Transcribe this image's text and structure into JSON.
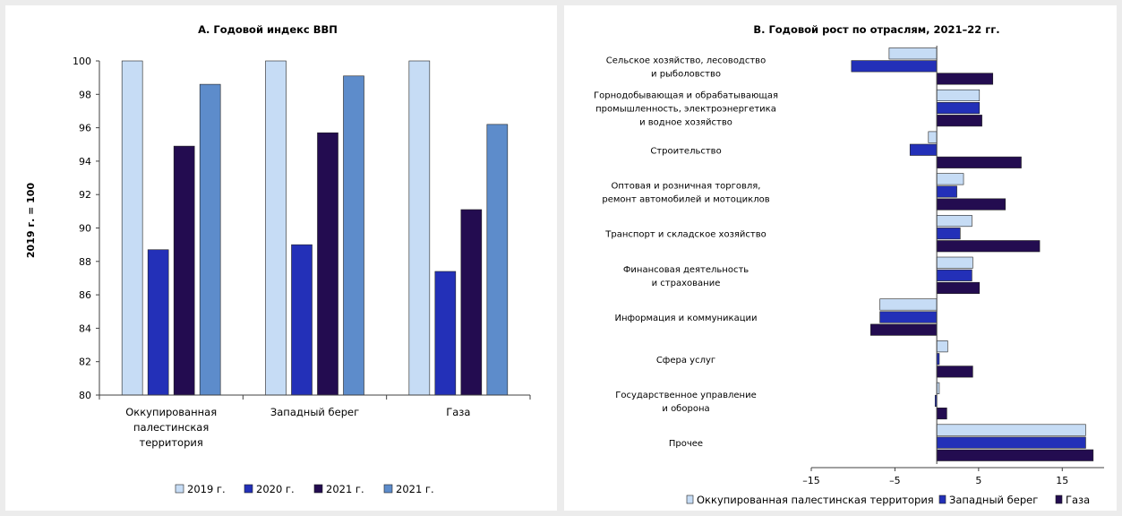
{
  "colors": {
    "light": "#c6dcf5",
    "blue": "#2330b8",
    "dark": "#230c50",
    "mid": "#5d8ccb",
    "axis": "#404040"
  },
  "chart_data": [
    {
      "type": "bar",
      "title": "А. Годовой индекс ВВП",
      "ylabel": "2019 г. = 100",
      "ylim": [
        80,
        100
      ],
      "yticks": [
        "80",
        "82",
        "84",
        "86",
        "88",
        "90",
        "92",
        "94",
        "96",
        "98",
        "100"
      ],
      "categories": [
        [
          "Оккупированная",
          "палестинская",
          "территория"
        ],
        [
          "Западный берег"
        ],
        [
          "Газа"
        ]
      ],
      "series": [
        {
          "name": "2019 г.",
          "color": "#c6dcf5",
          "values": [
            100,
            100,
            100
          ]
        },
        {
          "name": "2020 г.",
          "color": "#2330b8",
          "values": [
            88.7,
            89.0,
            87.4
          ]
        },
        {
          "name": "2021 г.",
          "color": "#230c50",
          "values": [
            94.9,
            95.7,
            91.1
          ]
        },
        {
          "name": "2021 г.",
          "color": "#5d8ccb",
          "values": [
            98.6,
            99.1,
            96.2
          ]
        }
      ],
      "legend_position": "bottom"
    },
    {
      "type": "bar",
      "orientation": "horizontal",
      "title": "B. Годовой рост по отраслям, 2021–22 гг.",
      "xlim": [
        -15,
        20
      ],
      "xticks": [
        "–15",
        "–5",
        "5",
        "15"
      ],
      "xtick_values": [
        -15,
        -5,
        5,
        15
      ],
      "categories": [
        [
          "Сельское хозяйство, лесоводство",
          "и рыболовство"
        ],
        [
          "Горнодобывающая и обрабатывающая",
          "промышленность, электроэнергетика",
          "и водное хозяйство"
        ],
        [
          "Строительство"
        ],
        [
          "Оптовая и розничная торговля,",
          "ремонт автомобилей и мотоциклов"
        ],
        [
          "Транспорт и складское хозяйство"
        ],
        [
          "Финансовая деятельность",
          "и страхование"
        ],
        [
          "Информация и коммуникации"
        ],
        [
          "Сфера услуг"
        ],
        [
          "Государственное управление",
          "и оборона"
        ],
        [
          "Прочее"
        ]
      ],
      "series": [
        {
          "name": "Оккупированная палестинская территория",
          "color": "#c6dcf5",
          "values": [
            -5.7,
            5.1,
            -1.0,
            3.2,
            4.2,
            4.3,
            -6.8,
            1.3,
            0.3,
            17.8
          ]
        },
        {
          "name": "Западный берег",
          "color": "#2330b8",
          "values": [
            -10.2,
            5.1,
            -3.2,
            2.4,
            2.8,
            4.2,
            -6.8,
            0.3,
            -0.2,
            17.8
          ]
        },
        {
          "name": "Газа",
          "color": "#230c50",
          "values": [
            6.7,
            5.4,
            10.1,
            8.2,
            12.3,
            5.1,
            -7.9,
            4.3,
            1.2,
            18.7
          ]
        }
      ],
      "legend_position": "bottom"
    }
  ]
}
